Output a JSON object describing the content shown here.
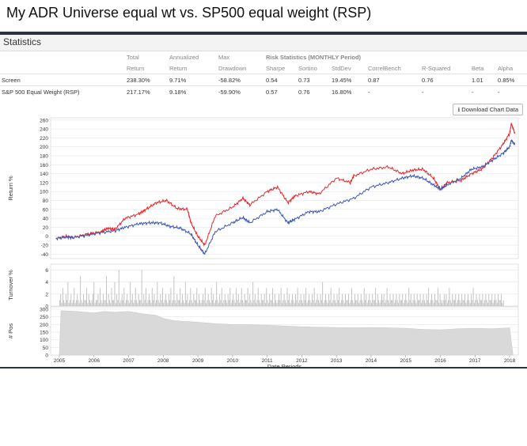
{
  "slide_title": "My ADR Universe equal wt vs. SP500 equal weight (RSP)",
  "stats": {
    "header": "Statistics",
    "download_label": "Download Chart Data",
    "risk_header": "Risk Statistics (MONTHLY Period)",
    "col_top": [
      "Total",
      "Annualized",
      "Max"
    ],
    "col_bottom": [
      "Return",
      "Return",
      "Drawdown",
      "Sharpe",
      "Sortino",
      "StdDev",
      "CorrelBench",
      "R-Squared",
      "Beta",
      "Alpha"
    ],
    "rows": [
      {
        "name": "Screen",
        "cells": [
          "238.30%",
          "9.71%",
          "-58.82%",
          "0.54",
          "0.73",
          "19.45%",
          "0.87",
          "0.76",
          "1.01",
          "0.85%"
        ]
      },
      {
        "name": "S&P 500 Equal Weight (RSP)",
        "cells": [
          "217.17%",
          "9.18%",
          "-59.90%",
          "0.57",
          "0.76",
          "16.80%",
          "-",
          "-",
          "-",
          "-"
        ]
      }
    ]
  },
  "chart_data": [
    {
      "type": "line",
      "ylabel": "Return %",
      "ylim": [
        -50,
        265
      ],
      "yticks": [
        -40,
        -20,
        0,
        20,
        40,
        60,
        80,
        100,
        120,
        140,
        160,
        180,
        200,
        220,
        240,
        260
      ],
      "xlim": [
        2004.75,
        2018.25
      ],
      "grid": true,
      "series": [
        {
          "name": "Screen",
          "color": "#e8262b",
          "x": [
            2004.9,
            2005.2,
            2005.4,
            2005.8,
            2006.2,
            2006.4,
            2006.6,
            2006.9,
            2007.3,
            2007.5,
            2007.8,
            2008.1,
            2008.4,
            2008.7,
            2008.8,
            2009.0,
            2009.2,
            2009.5,
            2010.0,
            2010.3,
            2010.5,
            2011.0,
            2011.3,
            2011.6,
            2011.8,
            2012.2,
            2012.5,
            2013.0,
            2013.4,
            2013.5,
            2014.0,
            2014.5,
            2014.9,
            2015.2,
            2015.5,
            2015.8,
            2016.0,
            2016.2,
            2016.6,
            2016.9,
            2017.2,
            2017.5,
            2017.8,
            2018.0,
            2018.05,
            2018.15
          ],
          "values": [
            -5,
            0,
            -3,
            5,
            10,
            18,
            15,
            40,
            50,
            60,
            75,
            80,
            62,
            60,
            30,
            0,
            -20,
            45,
            65,
            85,
            70,
            100,
            110,
            75,
            90,
            100,
            95,
            130,
            120,
            135,
            150,
            155,
            140,
            148,
            150,
            130,
            105,
            120,
            125,
            140,
            150,
            175,
            205,
            230,
            252,
            230
          ]
        },
        {
          "name": "S&P 500 Equal Weight (RSP)",
          "color": "#3a56b4",
          "x": [
            2004.9,
            2005.2,
            2005.4,
            2005.8,
            2006.2,
            2006.6,
            2006.9,
            2007.3,
            2007.6,
            2007.9,
            2008.2,
            2008.5,
            2008.8,
            2009.0,
            2009.2,
            2009.5,
            2010.0,
            2010.3,
            2010.5,
            2011.0,
            2011.3,
            2011.6,
            2011.8,
            2012.2,
            2012.5,
            2013.0,
            2013.5,
            2014.0,
            2014.5,
            2014.9,
            2015.2,
            2015.5,
            2015.8,
            2016.0,
            2016.2,
            2016.6,
            2016.9,
            2017.2,
            2017.5,
            2017.8,
            2018.0,
            2018.05,
            2018.15
          ],
          "values": [
            -5,
            -2,
            -3,
            2,
            8,
            12,
            20,
            28,
            30,
            30,
            22,
            18,
            5,
            -20,
            -40,
            10,
            30,
            42,
            30,
            55,
            60,
            30,
            38,
            55,
            55,
            72,
            85,
            110,
            120,
            130,
            135,
            130,
            115,
            105,
            115,
            130,
            150,
            155,
            170,
            185,
            200,
            215,
            205
          ]
        }
      ]
    },
    {
      "type": "bar",
      "ylabel": "Turnover %",
      "ylim": [
        0,
        7
      ],
      "yticks": [
        0,
        2,
        4,
        6
      ],
      "xlim": [
        2004.75,
        2018.25
      ],
      "x_start": 2005.0,
      "x_step": 0.03,
      "values": [
        1,
        2,
        0.5,
        3,
        1,
        0.5,
        2,
        1,
        4,
        0.5,
        1,
        2,
        0.5,
        1,
        3,
        0.5,
        1,
        2,
        1,
        0.5,
        5,
        1,
        0.5,
        2,
        1,
        1,
        3,
        0.5,
        2,
        1,
        0.5,
        1,
        2,
        4,
        0.5,
        1,
        1,
        2,
        0.5,
        3,
        1,
        0.5,
        2,
        1,
        1,
        5,
        0.5,
        2,
        1,
        0.5,
        3,
        1,
        1,
        4,
        0.5,
        2,
        1,
        6,
        0.5,
        1,
        2,
        1,
        3,
        0.5,
        1,
        2,
        1,
        0.5,
        4,
        1,
        2,
        0.5,
        1,
        3,
        1,
        0.5,
        2,
        1,
        1,
        6,
        0.5,
        2,
        1,
        3,
        0.5,
        1,
        2,
        1,
        0.5,
        3,
        1,
        2,
        0.5,
        1,
        4,
        1,
        0.5,
        2,
        1,
        3,
        0.5,
        1,
        2,
        1,
        0.5,
        2,
        1,
        3,
        0.5,
        1,
        5,
        1,
        0.5,
        2,
        1,
        1,
        3,
        0.5,
        2,
        1,
        0.5,
        4,
        1,
        2,
        0.5,
        1,
        3,
        1,
        0.5,
        2,
        1,
        1,
        3,
        0.5,
        2,
        1,
        0.5,
        1,
        2,
        1,
        3,
        0.5,
        1,
        2,
        1,
        0.5,
        3,
        1,
        2,
        0.5,
        1,
        4,
        1,
        0.5,
        2,
        1,
        3,
        0.5,
        1,
        2,
        1,
        0.5,
        2,
        1,
        3,
        0.5,
        1,
        2,
        1,
        0.5,
        3,
        1,
        2,
        0.5,
        1,
        3,
        1,
        0.5,
        2,
        1,
        1,
        3,
        0.5,
        2,
        1,
        0.5,
        4,
        1,
        2,
        0.5,
        1,
        3,
        1,
        0.5,
        2,
        1,
        1,
        2,
        0.5,
        3,
        1,
        0.5,
        2,
        1,
        1,
        3,
        0.5,
        2,
        1,
        0.5,
        1,
        2,
        1,
        3,
        0.5,
        1,
        2,
        1,
        0.5,
        3,
        1,
        2,
        0.5,
        1,
        2,
        1,
        0.5,
        2,
        1,
        3,
        0.5,
        1,
        2,
        1,
        0.5,
        2,
        1,
        3,
        0.5,
        1,
        2,
        1,
        0.5,
        2,
        1,
        3,
        0.5,
        1,
        2,
        1,
        0.5,
        2,
        1,
        4,
        0.5,
        1,
        2,
        1,
        0.5,
        2,
        1,
        3,
        0.5,
        1,
        2,
        1,
        0.5,
        2,
        1,
        3,
        0.5,
        1,
        2,
        1,
        0.5,
        2,
        1,
        1,
        2,
        0.5,
        1,
        3,
        1,
        0.5,
        2,
        1,
        1,
        2,
        0.5,
        1,
        2,
        1,
        0.5,
        3,
        1,
        2,
        0.5,
        1,
        2,
        1,
        0.5,
        2,
        1,
        1,
        3,
        0.5,
        2,
        1,
        0.5,
        1,
        2,
        1,
        2,
        0.5,
        1,
        3,
        1,
        0.5,
        2,
        1,
        1,
        2,
        0.5,
        1,
        2,
        1,
        0.5,
        2,
        1,
        1,
        2,
        0.5,
        1,
        2,
        1,
        0.5,
        3,
        1,
        2,
        0.5,
        1,
        2,
        1,
        0.5,
        2,
        1,
        1,
        2,
        0.5,
        1,
        2,
        1,
        0.5,
        2,
        1,
        3,
        0.5,
        1,
        2,
        1,
        0.5,
        2,
        1,
        1,
        3,
        0.5,
        2,
        1,
        0.5,
        1,
        2,
        1,
        2,
        0.5,
        1,
        3,
        1,
        0.5,
        2,
        1,
        1,
        2,
        0.5,
        1,
        2,
        1,
        0.5,
        2,
        1,
        1,
        2,
        0.5,
        1,
        2,
        1,
        0.5,
        2,
        1,
        3,
        0.5,
        1,
        2,
        1,
        0.5,
        2,
        1,
        1,
        2,
        0.5,
        1,
        2,
        1,
        0.5,
        2,
        1,
        1,
        2,
        0.5,
        1,
        2,
        1,
        0.5,
        2,
        1,
        1,
        2,
        0.5,
        1
      ]
    },
    {
      "type": "area",
      "ylabel": "# Pos",
      "xlabel": "Date Periods",
      "ylim": [
        0,
        315
      ],
      "yticks": [
        0,
        50,
        100,
        150,
        200,
        250,
        300
      ],
      "xlim": [
        2004.75,
        2018.25
      ],
      "xticks": [
        2005,
        2006,
        2007,
        2008,
        2009,
        2010,
        2011,
        2012,
        2013,
        2014,
        2015,
        2016,
        2017,
        2018
      ],
      "x": [
        2005.0,
        2005.05,
        2005.5,
        2006.0,
        2006.3,
        2006.6,
        2007.0,
        2007.4,
        2007.8,
        2008.0,
        2008.3,
        2008.6,
        2009.0,
        2009.5,
        2010.0,
        2010.5,
        2011.0,
        2011.5,
        2012.0,
        2012.5,
        2013.0,
        2013.5,
        2014.0,
        2014.5,
        2015.0,
        2015.5,
        2016.0,
        2016.5,
        2017.0,
        2017.5,
        2018.0,
        2018.1
      ],
      "values": [
        0,
        290,
        285,
        275,
        285,
        280,
        285,
        270,
        260,
        240,
        225,
        220,
        215,
        205,
        200,
        198,
        195,
        190,
        185,
        182,
        180,
        178,
        180,
        178,
        175,
        168,
        165,
        172,
        175,
        172,
        178,
        0
      ]
    }
  ]
}
